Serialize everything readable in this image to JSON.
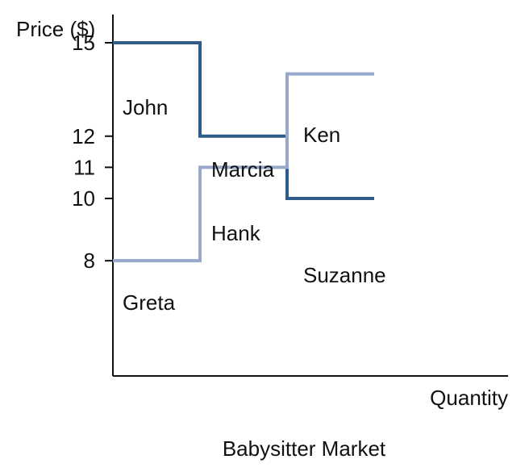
{
  "chart_data": {
    "type": "line",
    "title": "Babysitter Market",
    "xlabel": "Quantity",
    "ylabel": "Price ($)",
    "ylim": [
      4.3,
      17.5
    ],
    "xlim": [
      0,
      4.5
    ],
    "y_ticks": [
      15,
      12,
      11,
      10,
      8
    ],
    "grid": false,
    "series": [
      {
        "kind": "demand",
        "color": "#2e5b88",
        "steps": [
          {
            "x0": 0,
            "x1": 1,
            "y": 15
          },
          {
            "x0": 1,
            "x1": 2,
            "y": 12
          },
          {
            "x0": 2,
            "x1": 3,
            "y": 10
          }
        ]
      },
      {
        "kind": "supply",
        "color": "#98a8cc",
        "steps": [
          {
            "x0": 0,
            "x1": 1,
            "y": 8
          },
          {
            "x0": 1,
            "x1": 2,
            "y": 11
          },
          {
            "x0": 2,
            "x1": 3,
            "y": 14
          }
        ]
      }
    ],
    "annotations": [
      {
        "text": "John"
      },
      {
        "text": "Marcia"
      },
      {
        "text": "Ken"
      },
      {
        "text": "Hank"
      },
      {
        "text": "Suzanne"
      },
      {
        "text": "Greta"
      }
    ]
  }
}
